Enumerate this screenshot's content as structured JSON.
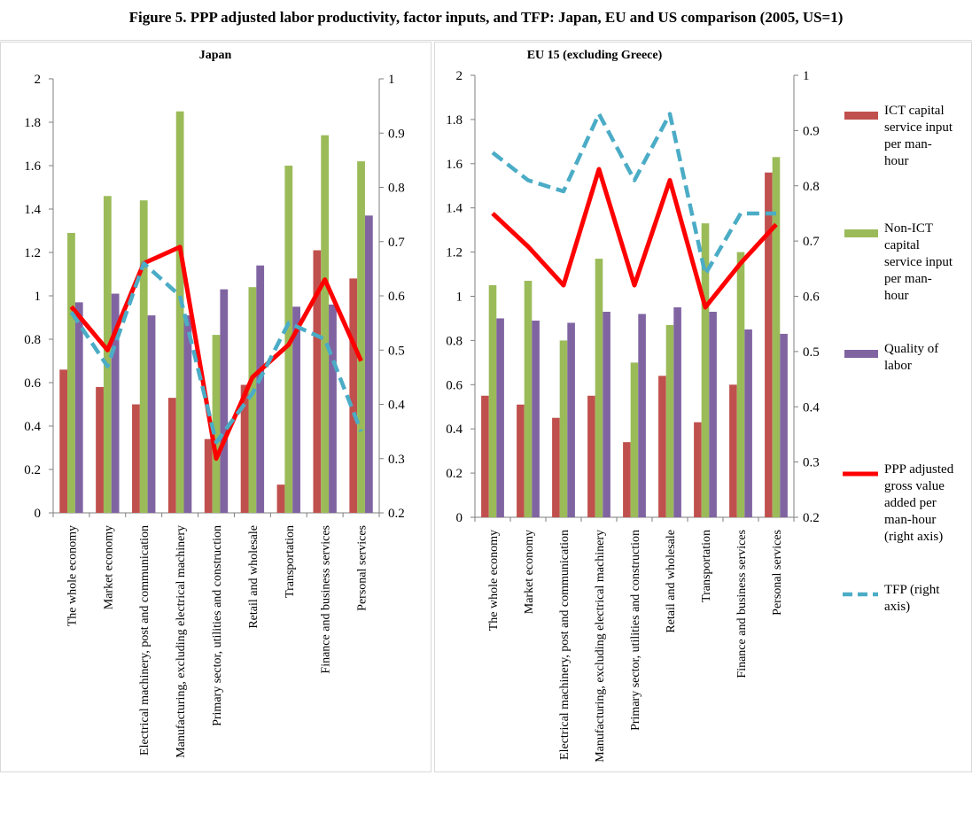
{
  "figure_title": "Figure 5. PPP adjusted labor productivity, factor inputs, and TFP: Japan, EU and US comparison (2005, US=1)",
  "legend": [
    {
      "label": "ICT capital service input per man-hour",
      "lines": [
        "ICT capital",
        "service input",
        "per man-",
        "hour"
      ],
      "type": "bar",
      "color": "#c0504d"
    },
    {
      "label": "Non-ICT capital service input per man-hour",
      "lines": [
        "Non-ICT",
        "capital",
        "service input",
        "per man-",
        "hour"
      ],
      "type": "bar",
      "color": "#9bbb59"
    },
    {
      "label": "Quality of labor",
      "lines": [
        "Quality of",
        "labor"
      ],
      "type": "bar",
      "color": "#8064a2"
    },
    {
      "label": "PPP adjusted gross value added per man-hour (right axis)",
      "lines": [
        "PPP adjusted",
        "gross value",
        "added per",
        "man-hour",
        "(right axis)"
      ],
      "type": "line",
      "color": "#ff0000"
    },
    {
      "label": "TFP (right axis)",
      "lines": [
        "TFP (right",
        "axis)"
      ],
      "type": "dashed-line",
      "color": "#4bacc6"
    }
  ],
  "chart_data": [
    {
      "type": "bar",
      "title": "Japan",
      "categories": [
        "The whole economy",
        "Market economy",
        "Electrical machinery, post and communication",
        "Manufacturing, excluding electrical machinery",
        "Primary sector, utilities and construction",
        "Retail and wholesale",
        "Transportation",
        "Finance and business services",
        "Personal services"
      ],
      "ylim": [
        0,
        2
      ],
      "y_ticks": [
        "0",
        "0.2",
        "0.4",
        "0.6",
        "0.8",
        "1",
        "1.2",
        "1.4",
        "1.6",
        "1.8",
        "2"
      ],
      "y2lim": [
        0.2,
        1
      ],
      "y2_ticks": [
        "0.2",
        "0.3",
        "0.4",
        "0.5",
        "0.6",
        "0.7",
        "0.8",
        "0.9",
        "1"
      ],
      "series": [
        {
          "name": "ICT capital service input per man-hour",
          "axis": "left",
          "values": [
            0.66,
            0.58,
            0.5,
            0.53,
            0.34,
            0.59,
            0.13,
            1.21,
            1.08
          ]
        },
        {
          "name": "Non-ICT capital service input per man-hour",
          "axis": "left",
          "values": [
            1.29,
            1.46,
            1.44,
            1.85,
            0.82,
            1.04,
            1.6,
            1.74,
            1.62
          ]
        },
        {
          "name": "Quality of labor",
          "axis": "left",
          "values": [
            0.97,
            1.01,
            0.91,
            0.91,
            1.03,
            1.14,
            0.95,
            0.96,
            1.37
          ]
        },
        {
          "name": "PPP adjusted gross value added per man-hour (right axis)",
          "axis": "right",
          "values": [
            0.58,
            0.5,
            0.66,
            0.69,
            0.3,
            0.45,
            0.51,
            0.63,
            0.48
          ]
        },
        {
          "name": "TFP (right axis)",
          "axis": "right",
          "values": [
            0.57,
            0.47,
            0.66,
            0.6,
            0.33,
            0.42,
            0.55,
            0.52,
            0.35
          ]
        }
      ]
    },
    {
      "type": "bar",
      "title": "EU 15 (excluding Greece)",
      "categories": [
        "The whole economy",
        "Market economy",
        "Electrical machinery, post and communication",
        "Manufacturing, excluding electrical machinery",
        "Primary sector, utilities and construction",
        "Retail and wholesale",
        "Transportation",
        "Finance and business services",
        "Personal services"
      ],
      "ylim": [
        0,
        2
      ],
      "y_ticks": [
        "0",
        "0.2",
        "0.4",
        "0.6",
        "0.8",
        "1",
        "1.2",
        "1.4",
        "1.6",
        "1.8",
        "2"
      ],
      "y2lim": [
        0.2,
        1
      ],
      "y2_ticks": [
        "0.2",
        "0.3",
        "0.4",
        "0.5",
        "0.6",
        "0.7",
        "0.8",
        "0.9",
        "1"
      ],
      "series": [
        {
          "name": "ICT capital service input per man-hour",
          "axis": "left",
          "values": [
            0.55,
            0.51,
            0.45,
            0.55,
            0.34,
            0.64,
            0.43,
            0.6,
            1.56
          ]
        },
        {
          "name": "Non-ICT capital service input per man-hour",
          "axis": "left",
          "values": [
            1.05,
            1.07,
            0.8,
            1.17,
            0.7,
            0.87,
            1.33,
            1.2,
            1.63
          ]
        },
        {
          "name": "Quality of labor",
          "axis": "left",
          "values": [
            0.9,
            0.89,
            0.88,
            0.93,
            0.92,
            0.95,
            0.93,
            0.85,
            0.83
          ]
        },
        {
          "name": "PPP adjusted gross value added per man-hour (right axis)",
          "axis": "right",
          "values": [
            0.75,
            0.69,
            0.62,
            0.83,
            0.62,
            0.81,
            0.58,
            0.66,
            0.73
          ]
        },
        {
          "name": "TFP (right axis)",
          "axis": "right",
          "values": [
            0.86,
            0.81,
            0.79,
            0.93,
            0.81,
            0.93,
            0.64,
            0.75,
            0.75
          ]
        }
      ]
    }
  ]
}
